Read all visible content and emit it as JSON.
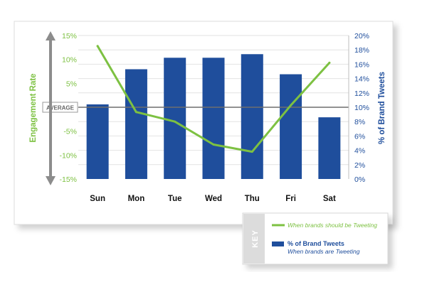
{
  "chart_data": {
    "type": "bar",
    "categories": [
      "Sun",
      "Mon",
      "Tue",
      "Wed",
      "Thu",
      "Fri",
      "Sat"
    ],
    "left_axis": {
      "label": "Engagement Rate",
      "ylim": [
        -15,
        15
      ],
      "ticks": [
        "15%",
        "10%",
        "5%",
        "",
        "-5%",
        "-10%",
        "-15%"
      ],
      "tick_values": [
        15,
        10,
        5,
        0,
        -5,
        -10,
        -15
      ],
      "color": "#7dc142"
    },
    "right_axis": {
      "label": "% of Brand Tweets",
      "ylim": [
        0,
        20
      ],
      "ticks": [
        "20%",
        "18%",
        "16%",
        "14%",
        "12%",
        "10%",
        "8%",
        "6%",
        "4%",
        "2%",
        "0%"
      ],
      "tick_values": [
        20,
        18,
        16,
        14,
        12,
        10,
        8,
        6,
        4,
        2,
        0
      ],
      "color": "#1f4e9c"
    },
    "average_label": "AVERAGE",
    "series": [
      {
        "name": "% of Brand Tweets",
        "type": "bar",
        "axis": "right",
        "values": [
          10.4,
          15.3,
          16.9,
          16.9,
          17.4,
          14.6,
          8.6
        ],
        "color": "#1f4e9c"
      },
      {
        "name": "When brands should be Tweeting",
        "type": "line",
        "axis": "left",
        "values": [
          12.8,
          -1.0,
          -3.0,
          -7.8,
          -9.3,
          0.4,
          9.3
        ],
        "color": "#7dc142"
      }
    ],
    "grid": true,
    "legend": {
      "title": "KEY",
      "position": "bottom-right",
      "items": [
        {
          "label": "When brands should be Tweeting",
          "sublabel": "",
          "kind": "line",
          "color": "#7dc142"
        },
        {
          "label": "% of Brand Tweets",
          "sublabel": "When brands are Tweeting",
          "kind": "bar",
          "color": "#1f4e9c"
        }
      ]
    }
  }
}
